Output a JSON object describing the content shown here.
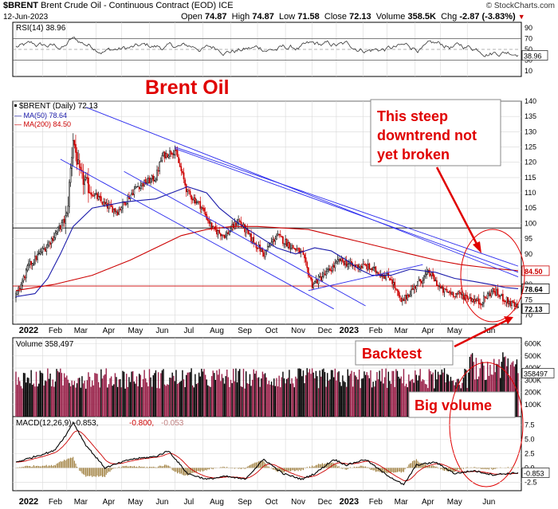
{
  "header": {
    "symbol": "$BRENT",
    "name": "Brent Crude Oil - Continuous Contract (EOD) ICE",
    "watermark": "© StockCharts.com",
    "date": "12-Jun-2023",
    "open_label": "Open",
    "open": "74.87",
    "high_label": "High",
    "high": "74.87",
    "low_label": "Low",
    "low": "71.58",
    "close_label": "Close",
    "close": "72.13",
    "volume_label": "Volume",
    "volume": "358.5K",
    "chg_label": "Chg",
    "chg": "-2.87 (-3.83%)"
  },
  "colors": {
    "up": "#000000",
    "down": "#cc0000",
    "ma50": "#1a1aaa",
    "ma200": "#cc0000",
    "trend": "#2a2aee",
    "annotation": "#e00000",
    "volume": "#99224a",
    "grid": "#d8d8d8"
  },
  "chart_data": [
    {
      "type": "line",
      "panel": "rsi",
      "legend": "RSI(14) 38.96",
      "y_ticks": [
        "90",
        "70",
        "50",
        "30",
        "10"
      ],
      "ylim": [
        0,
        100
      ],
      "levels": [
        70,
        50,
        30
      ],
      "last_label": "38.96",
      "last_value": 38.96
    },
    {
      "type": "candlestick",
      "panel": "price",
      "legend_main": "$BRENT (Daily) 72.13",
      "legend_ma50": "MA(50) 78.64",
      "legend_ma200": "MA(200) 84.50",
      "title_annotation": "Brent Oil",
      "ylim": [
        67,
        140
      ],
      "y_ticks": [
        "140",
        "135",
        "130",
        "125",
        "120",
        "115",
        "110",
        "105",
        "100",
        "95",
        "90",
        "85",
        "80",
        "75",
        "70"
      ],
      "x_labels": [
        "2022",
        "Feb",
        "Mar",
        "Apr",
        "May",
        "Jun",
        "Jul",
        "Aug",
        "Sep",
        "Oct",
        "Nov",
        "Dec",
        "2023",
        "Feb",
        "Mar",
        "Apr",
        "May",
        "Jun"
      ],
      "horizontal_levels": [
        98.5,
        79.5
      ],
      "last_close": 72.13,
      "last_close_label": "72.13",
      "ma50_last": 78.64,
      "ma50_label": "78.64",
      "ma200_last": 84.5,
      "ma200_label": "84.50",
      "ma50_path": [
        [
          0,
          76
        ],
        [
          15,
          77
        ],
        [
          25,
          82
        ],
        [
          35,
          90
        ],
        [
          45,
          99
        ],
        [
          60,
          105
        ],
        [
          85,
          107
        ],
        [
          110,
          108
        ],
        [
          135,
          112
        ],
        [
          150,
          110
        ],
        [
          160,
          105
        ],
        [
          175,
          100
        ],
        [
          190,
          96
        ],
        [
          205,
          92
        ],
        [
          220,
          90
        ],
        [
          235,
          92
        ],
        [
          248,
          91
        ],
        [
          260,
          88
        ],
        [
          270,
          85
        ],
        [
          280,
          83
        ],
        [
          295,
          83
        ],
        [
          310,
          85
        ],
        [
          330,
          84
        ],
        [
          345,
          82
        ],
        [
          360,
          81
        ],
        [
          373,
          80
        ],
        [
          385,
          79
        ],
        [
          395,
          78.64
        ]
      ],
      "ma200_path": [
        [
          0,
          78
        ],
        [
          30,
          80
        ],
        [
          60,
          83
        ],
        [
          90,
          88
        ],
        [
          110,
          92
        ],
        [
          130,
          96
        ],
        [
          150,
          98
        ],
        [
          170,
          99
        ],
        [
          190,
          99
        ],
        [
          210,
          98.5
        ],
        [
          230,
          98
        ],
        [
          250,
          96
        ],
        [
          270,
          94
        ],
        [
          290,
          92
        ],
        [
          310,
          90
        ],
        [
          330,
          88
        ],
        [
          350,
          86.5
        ],
        [
          370,
          85.5
        ],
        [
          395,
          84.5
        ]
      ],
      "trendlines": [
        {
          "from": [
            55,
            138
          ],
          "to": [
            395,
            82.5
          ]
        },
        {
          "from": [
            125,
            124.5
          ],
          "to": [
            395,
            84
          ]
        },
        {
          "from": [
            125,
            125
          ],
          "to": [
            395,
            86
          ]
        },
        {
          "from": [
            35,
            121
          ],
          "to": [
            250,
            72
          ]
        },
        {
          "from": [
            85,
            117
          ],
          "to": [
            275,
            73
          ]
        },
        {
          "from": [
            230,
            78
          ],
          "to": [
            320,
            86.5
          ]
        }
      ],
      "annotations": [
        {
          "text_lines": [
            "This steep",
            "downtrend not",
            "yet broken"
          ]
        },
        {
          "text_lines": [
            "Backtest"
          ]
        },
        {
          "text_lines": [
            "Big volume"
          ]
        }
      ]
    },
    {
      "type": "bar",
      "panel": "volume",
      "legend": "Volume 358,497",
      "y_ticks": [
        "600K",
        "500K",
        "400K",
        "300K",
        "200K",
        "100K"
      ],
      "ylim": [
        0,
        650
      ],
      "last_label": "358497",
      "last_value": 358.497
    },
    {
      "type": "line",
      "panel": "macd",
      "legend_main": "MACD(12,26,9) -0.853,",
      "legend_signal": "-0.800,",
      "legend_hist": "-0.053",
      "y_ticks": [
        "7.5",
        "5.0",
        "2.5",
        "0.0",
        "-2.5"
      ],
      "ylim": [
        -4,
        9
      ],
      "last_label": "-0.853",
      "last_value": -0.853
    }
  ]
}
